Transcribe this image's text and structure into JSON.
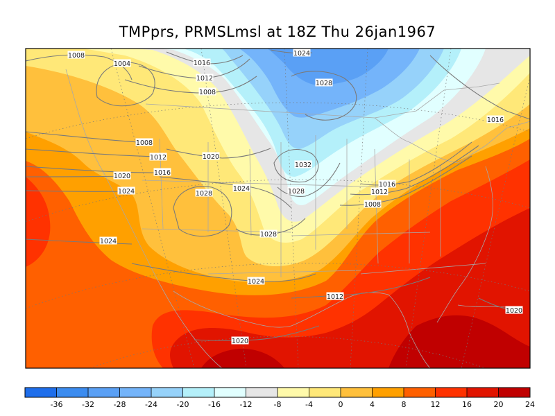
{
  "title": "TMPprs, PRMSLmsl at 18Z Thu 26jan1967",
  "colorbar": {
    "colors": [
      "#1e6eeb",
      "#3c8cf0",
      "#5aa0f5",
      "#74b4fa",
      "#96d2fa",
      "#b4f0fa",
      "#e1ffff",
      "#e6e6e6",
      "#fffaaa",
      "#ffe878",
      "#ffc03c",
      "#ffa000",
      "#ff6000",
      "#ff3200",
      "#e11400",
      "#c00000"
    ],
    "labels": [
      "-36",
      "-32",
      "-28",
      "-24",
      "-20",
      "-16",
      "-12",
      "-8",
      "-4",
      "0",
      "4",
      "8",
      "12",
      "16",
      "20",
      "24"
    ]
  },
  "isobars": [
    {
      "id": "iso-1008-nw",
      "label": "1008"
    },
    {
      "id": "iso-1004",
      "label": "1004"
    },
    {
      "id": "iso-1016-n",
      "label": "1016"
    },
    {
      "id": "iso-1012-n",
      "label": "1012"
    },
    {
      "id": "iso-1008-n",
      "label": "1008"
    },
    {
      "id": "iso-1024-top",
      "label": "1024"
    },
    {
      "id": "iso-1028-top",
      "label": "1028"
    },
    {
      "id": "iso-1016-ne",
      "label": "1016"
    },
    {
      "id": "iso-1008-w",
      "label": "1008"
    },
    {
      "id": "iso-1012-w",
      "label": "1012"
    },
    {
      "id": "iso-1016-w",
      "label": "1016"
    },
    {
      "id": "iso-1020-c",
      "label": "1020"
    },
    {
      "id": "iso-1020-w",
      "label": "1020"
    },
    {
      "id": "iso-1024-w",
      "label": "1024"
    },
    {
      "id": "iso-1028-c",
      "label": "1028"
    },
    {
      "id": "iso-1024-c",
      "label": "1024"
    },
    {
      "id": "iso-1032",
      "label": "1032"
    },
    {
      "id": "iso-1028-e",
      "label": "1028"
    },
    {
      "id": "iso-1016-e",
      "label": "1016"
    },
    {
      "id": "iso-1012-e",
      "label": "1012"
    },
    {
      "id": "iso-1008-e",
      "label": "1008"
    },
    {
      "id": "iso-1028-s",
      "label": "1028"
    },
    {
      "id": "iso-1024-sw",
      "label": "1024"
    },
    {
      "id": "iso-1024-s",
      "label": "1024"
    },
    {
      "id": "iso-1012-s",
      "label": "1012"
    },
    {
      "id": "iso-1020-se",
      "label": "1020"
    },
    {
      "id": "iso-1020-s",
      "label": "1020"
    }
  ]
}
